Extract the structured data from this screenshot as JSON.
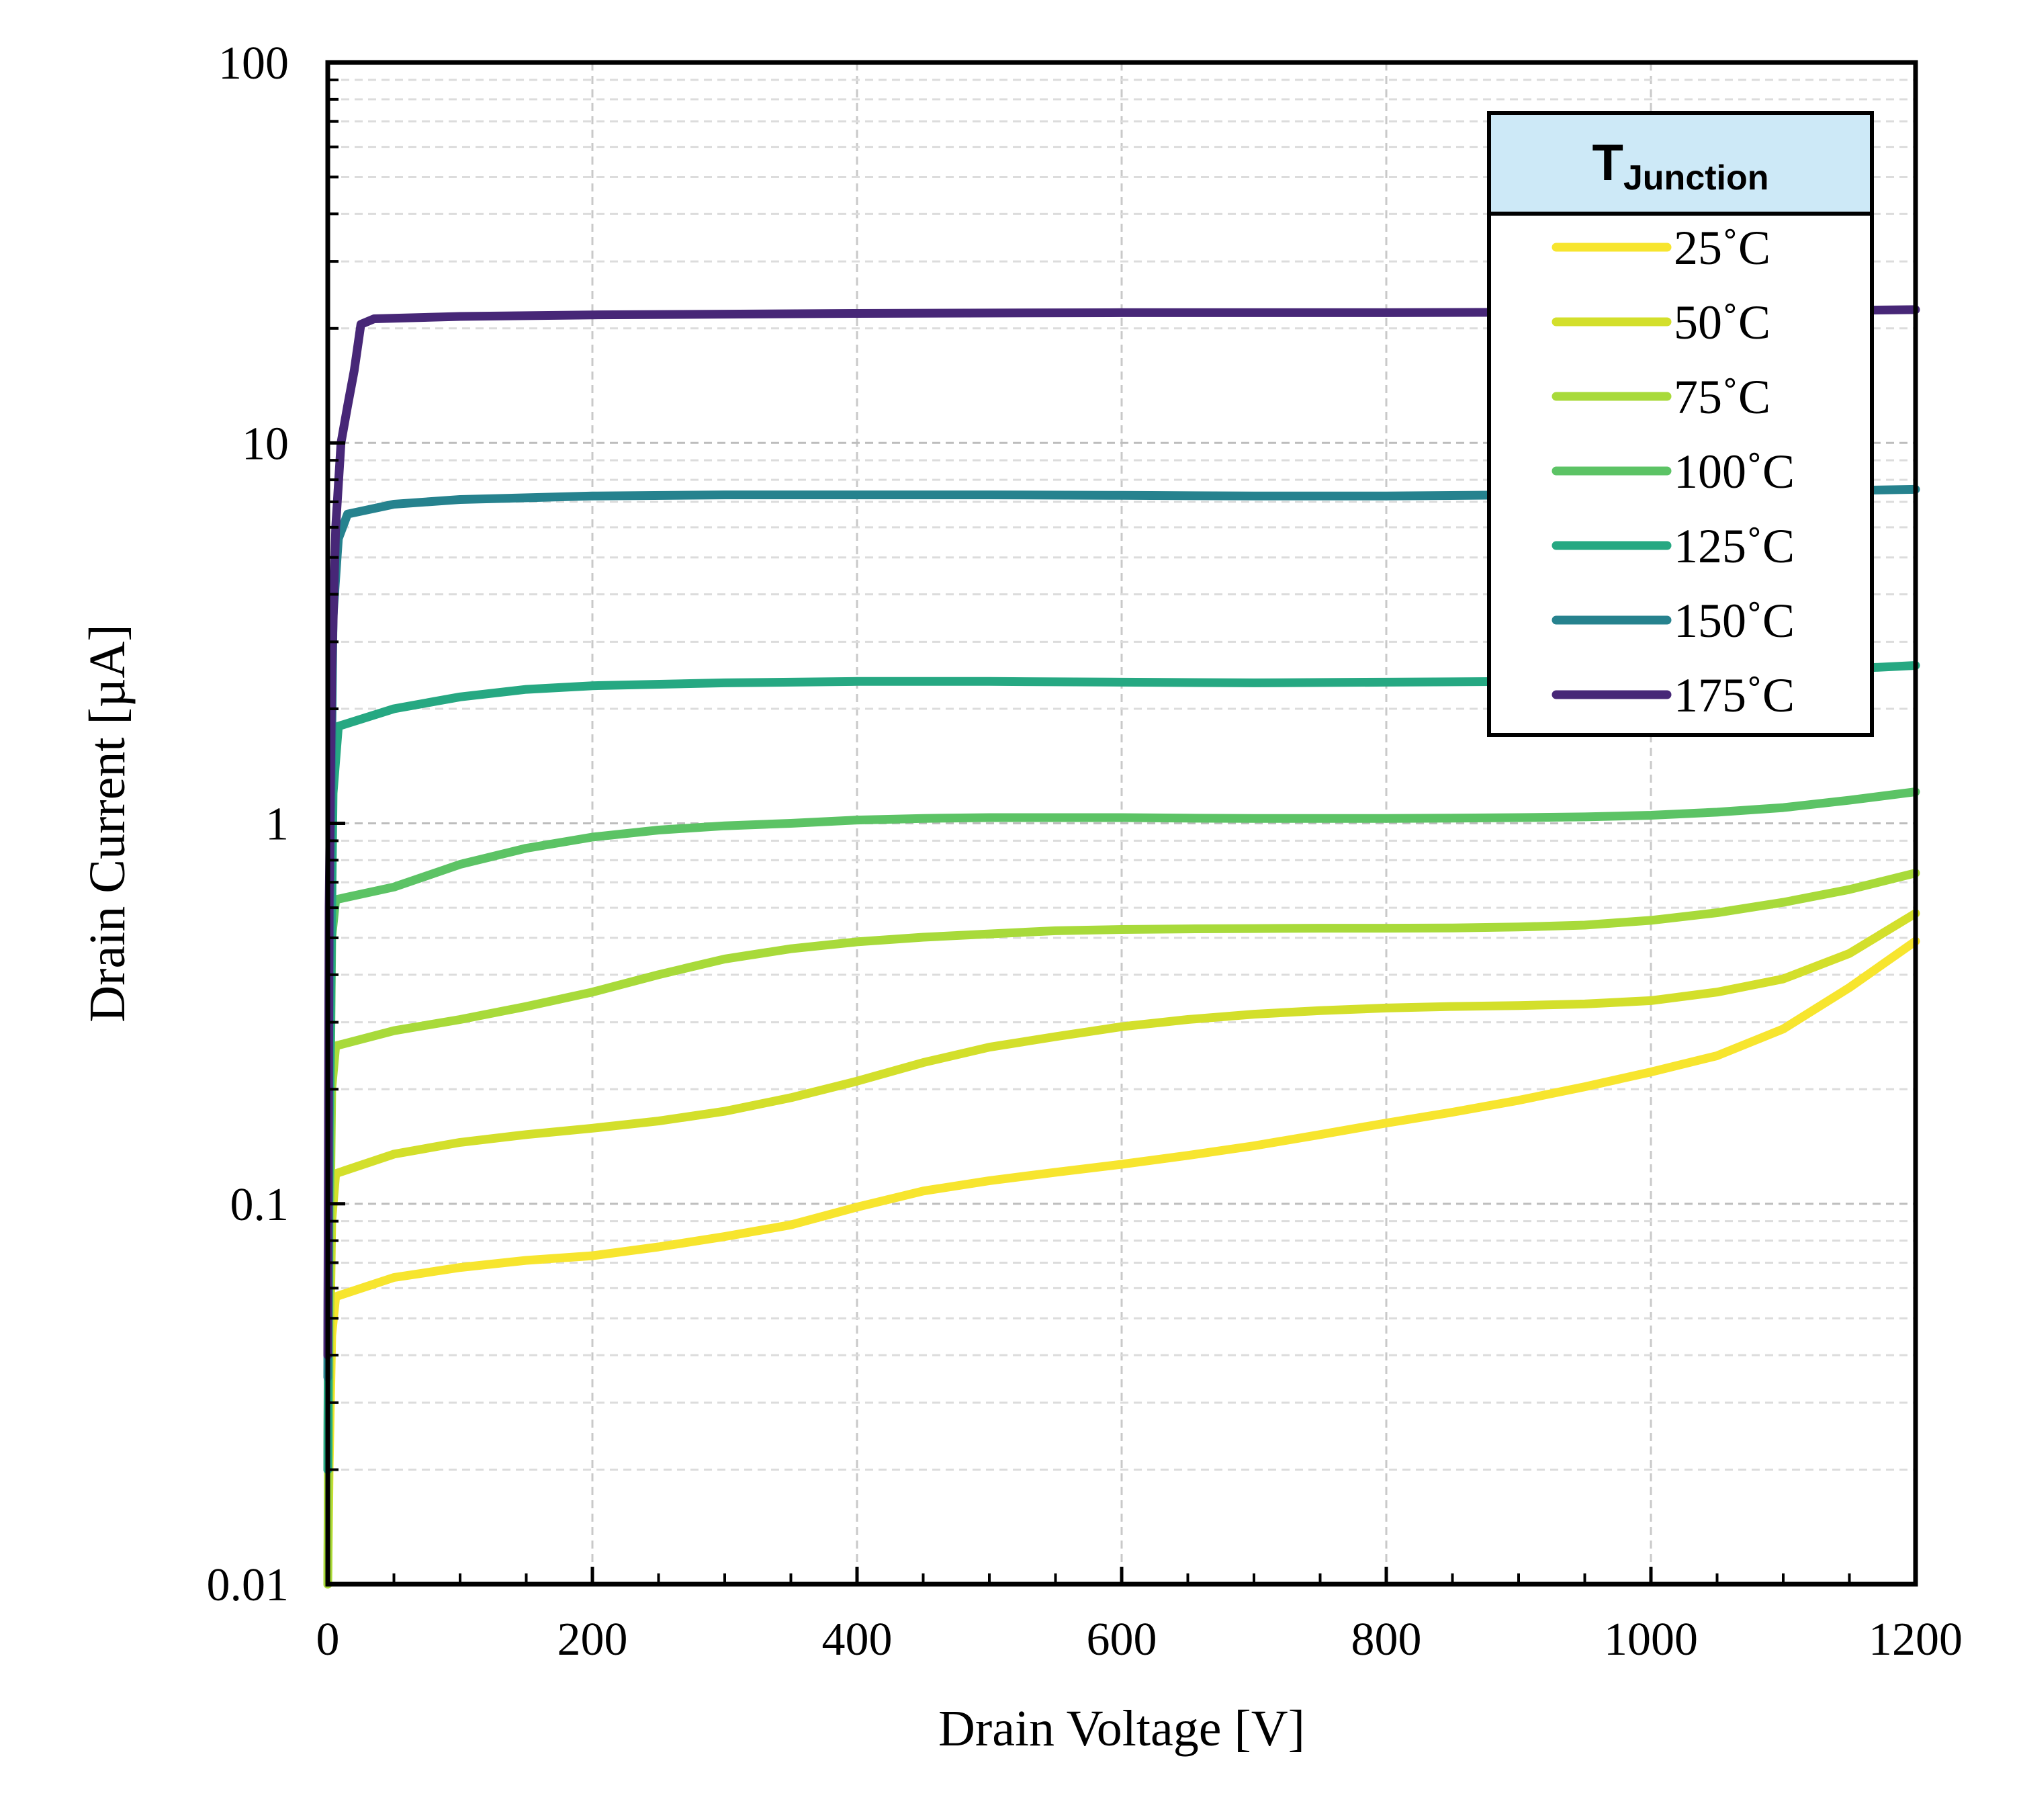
{
  "chart_data": {
    "type": "line",
    "title": "",
    "xlabel": "Drain Voltage [V]",
    "ylabel": "Drain Current [µA]",
    "xscale": "linear",
    "yscale": "log",
    "xlim": [
      0,
      1200
    ],
    "ylim": [
      0.01,
      100
    ],
    "xticks": [
      0,
      200,
      400,
      600,
      800,
      1000,
      1200
    ],
    "xtick_labels": [
      "0",
      "200",
      "400",
      "600",
      "800",
      "1000",
      "1200"
    ],
    "yticks": [
      0.01,
      0.1,
      1,
      10,
      100
    ],
    "ytick_labels": [
      "0.01",
      "0.1",
      "1",
      "10",
      "100"
    ],
    "grid": true,
    "legend": {
      "title_main": "T",
      "title_sub": "Junction",
      "placement": "top-right",
      "title_bg": "#cde9f7"
    },
    "series": [
      {
        "name": "25˚C",
        "color": "#f7e52e",
        "points": [
          [
            0,
            0.01
          ],
          [
            1,
            0.02
          ],
          [
            3,
            0.045
          ],
          [
            6,
            0.057
          ],
          [
            50,
            0.064
          ],
          [
            100,
            0.068
          ],
          [
            150,
            0.071
          ],
          [
            200,
            0.073
          ],
          [
            250,
            0.077
          ],
          [
            300,
            0.082
          ],
          [
            350,
            0.088
          ],
          [
            400,
            0.098
          ],
          [
            450,
            0.108
          ],
          [
            500,
            0.115
          ],
          [
            550,
            0.121
          ],
          [
            600,
            0.127
          ],
          [
            650,
            0.134
          ],
          [
            700,
            0.142
          ],
          [
            750,
            0.152
          ],
          [
            800,
            0.163
          ],
          [
            850,
            0.174
          ],
          [
            900,
            0.187
          ],
          [
            950,
            0.203
          ],
          [
            1000,
            0.222
          ],
          [
            1050,
            0.245
          ],
          [
            1100,
            0.288
          ],
          [
            1150,
            0.37
          ],
          [
            1200,
            0.49
          ]
        ]
      },
      {
        "name": "50˚C",
        "color": "#d3df2b",
        "points": [
          [
            0,
            0.01
          ],
          [
            1,
            0.03
          ],
          [
            3,
            0.09
          ],
          [
            6,
            0.12
          ],
          [
            50,
            0.135
          ],
          [
            100,
            0.145
          ],
          [
            150,
            0.152
          ],
          [
            200,
            0.158
          ],
          [
            250,
            0.165
          ],
          [
            300,
            0.175
          ],
          [
            350,
            0.19
          ],
          [
            400,
            0.21
          ],
          [
            450,
            0.235
          ],
          [
            500,
            0.258
          ],
          [
            550,
            0.275
          ],
          [
            600,
            0.292
          ],
          [
            650,
            0.305
          ],
          [
            700,
            0.315
          ],
          [
            750,
            0.322
          ],
          [
            800,
            0.327
          ],
          [
            850,
            0.33
          ],
          [
            900,
            0.332
          ],
          [
            950,
            0.335
          ],
          [
            1000,
            0.342
          ],
          [
            1050,
            0.36
          ],
          [
            1100,
            0.39
          ],
          [
            1150,
            0.455
          ],
          [
            1200,
            0.58
          ]
        ]
      },
      {
        "name": "75˚C",
        "color": "#a8da3a",
        "points": [
          [
            0,
            0.01
          ],
          [
            1,
            0.05
          ],
          [
            3,
            0.2
          ],
          [
            6,
            0.26
          ],
          [
            50,
            0.285
          ],
          [
            100,
            0.305
          ],
          [
            150,
            0.33
          ],
          [
            200,
            0.36
          ],
          [
            250,
            0.4
          ],
          [
            300,
            0.44
          ],
          [
            350,
            0.468
          ],
          [
            400,
            0.488
          ],
          [
            450,
            0.502
          ],
          [
            500,
            0.512
          ],
          [
            550,
            0.522
          ],
          [
            600,
            0.526
          ],
          [
            650,
            0.528
          ],
          [
            700,
            0.529
          ],
          [
            750,
            0.53
          ],
          [
            800,
            0.53
          ],
          [
            850,
            0.531
          ],
          [
            900,
            0.534
          ],
          [
            950,
            0.54
          ],
          [
            1000,
            0.556
          ],
          [
            1050,
            0.582
          ],
          [
            1100,
            0.62
          ],
          [
            1150,
            0.67
          ],
          [
            1200,
            0.74
          ]
        ]
      },
      {
        "name": "100˚C",
        "color": "#5cc365",
        "points": [
          [
            0,
            0.02
          ],
          [
            1,
            0.1
          ],
          [
            3,
            0.5
          ],
          [
            6,
            0.63
          ],
          [
            50,
            0.68
          ],
          [
            100,
            0.78
          ],
          [
            150,
            0.86
          ],
          [
            200,
            0.92
          ],
          [
            250,
            0.96
          ],
          [
            300,
            0.985
          ],
          [
            350,
            1.0
          ],
          [
            400,
            1.02
          ],
          [
            450,
            1.03
          ],
          [
            500,
            1.035
          ],
          [
            550,
            1.035
          ],
          [
            600,
            1.035
          ],
          [
            650,
            1.032
          ],
          [
            700,
            1.03
          ],
          [
            750,
            1.03
          ],
          [
            800,
            1.03
          ],
          [
            850,
            1.032
          ],
          [
            900,
            1.035
          ],
          [
            950,
            1.04
          ],
          [
            1000,
            1.05
          ],
          [
            1050,
            1.07
          ],
          [
            1100,
            1.1
          ],
          [
            1150,
            1.15
          ],
          [
            1200,
            1.21
          ]
        ]
      },
      {
        "name": "125˚C",
        "color": "#26a882",
        "points": [
          [
            0,
            0.02
          ],
          [
            1,
            0.15
          ],
          [
            4,
            1.2
          ],
          [
            8,
            1.8
          ],
          [
            50,
            2.0
          ],
          [
            100,
            2.15
          ],
          [
            150,
            2.25
          ],
          [
            200,
            2.3
          ],
          [
            300,
            2.34
          ],
          [
            400,
            2.36
          ],
          [
            500,
            2.36
          ],
          [
            600,
            2.35
          ],
          [
            700,
            2.34
          ],
          [
            800,
            2.35
          ],
          [
            900,
            2.36
          ],
          [
            1000,
            2.4
          ],
          [
            1050,
            2.45
          ],
          [
            1100,
            2.5
          ],
          [
            1150,
            2.55
          ],
          [
            1200,
            2.6
          ]
        ]
      },
      {
        "name": "150˚C",
        "color": "#26828e",
        "points": [
          [
            0,
            0.035
          ],
          [
            1,
            0.4
          ],
          [
            4,
            3.5
          ],
          [
            8,
            5.6
          ],
          [
            15,
            6.5
          ],
          [
            50,
            6.9
          ],
          [
            100,
            7.1
          ],
          [
            200,
            7.25
          ],
          [
            300,
            7.3
          ],
          [
            400,
            7.3
          ],
          [
            500,
            7.3
          ],
          [
            600,
            7.28
          ],
          [
            700,
            7.25
          ],
          [
            800,
            7.25
          ],
          [
            900,
            7.3
          ],
          [
            1000,
            7.35
          ],
          [
            1100,
            7.45
          ],
          [
            1200,
            7.55
          ]
        ]
      },
      {
        "name": "175˚C",
        "color": "#472777",
        "points": [
          [
            0,
            0.04
          ],
          [
            1,
            0.6
          ],
          [
            3,
            2.5
          ],
          [
            6,
            6.0
          ],
          [
            10,
            10.0
          ],
          [
            15,
            12.5
          ],
          [
            20,
            15.5
          ],
          [
            25,
            20.5
          ],
          [
            35,
            21.2
          ],
          [
            100,
            21.5
          ],
          [
            200,
            21.7
          ],
          [
            400,
            21.9
          ],
          [
            600,
            22.0
          ],
          [
            800,
            22.0
          ],
          [
            1000,
            22.1
          ],
          [
            1100,
            22.2
          ],
          [
            1200,
            22.4
          ]
        ]
      }
    ]
  }
}
